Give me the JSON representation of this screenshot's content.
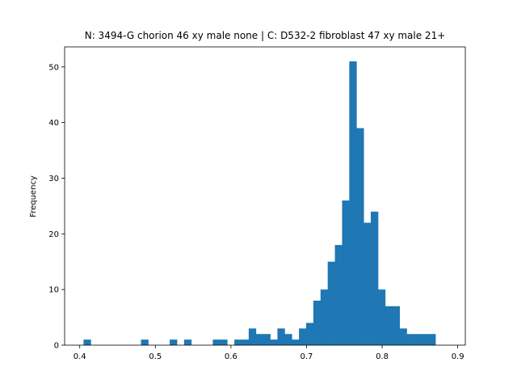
{
  "chart_data": {
    "type": "bar",
    "title": "N: 3494-G chorion 46 xy male none | C: D532-2 fibroblast 47 xy male 21+",
    "xlabel": "",
    "ylabel": "Frequency",
    "xlim": [
      0.38,
      0.91
    ],
    "ylim": [
      0,
      53.6
    ],
    "xticks": [
      {
        "value": 0.4,
        "label": "0.4"
      },
      {
        "value": 0.5,
        "label": "0.5"
      },
      {
        "value": 0.6,
        "label": "0.6"
      },
      {
        "value": 0.7,
        "label": "0.7"
      },
      {
        "value": 0.8,
        "label": "0.8"
      },
      {
        "value": 0.9,
        "label": "0.9"
      }
    ],
    "yticks": [
      {
        "value": 0,
        "label": "0"
      },
      {
        "value": 10,
        "label": "10"
      },
      {
        "value": 20,
        "label": "20"
      },
      {
        "value": 30,
        "label": "30"
      },
      {
        "value": 40,
        "label": "40"
      },
      {
        "value": 50,
        "label": "50"
      }
    ],
    "bin_start": 0.405,
    "bin_width": 0.0095,
    "counts": [
      1,
      0,
      0,
      0,
      0,
      0,
      0,
      0,
      1,
      0,
      0,
      0,
      1,
      0,
      1,
      0,
      0,
      0,
      1,
      1,
      0,
      1,
      1,
      3,
      2,
      2,
      1,
      3,
      2,
      1,
      3,
      4,
      8,
      10,
      15,
      18,
      26,
      51,
      39,
      22,
      24,
      10,
      7,
      7,
      3,
      2,
      2,
      2,
      2
    ],
    "bar_color": "#1f77b4",
    "grid": false
  }
}
